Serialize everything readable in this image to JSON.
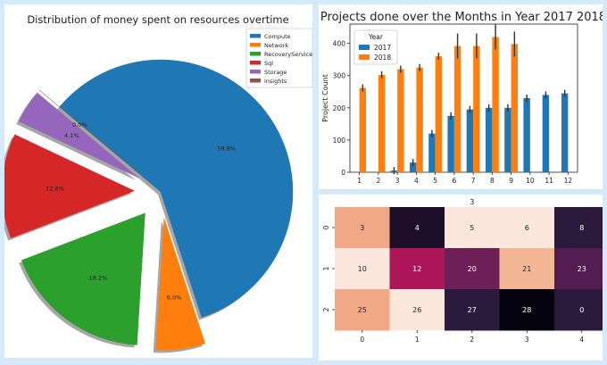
{
  "charts": [
    {
      "type": "pie",
      "title": "Distribution of money spent on resources overtime",
      "labels": [
        "Compute",
        "Network",
        "RecoveryService",
        "Sql",
        "Storage",
        "insights"
      ],
      "values": [
        58.8,
        6.0,
        18.2,
        12.8,
        4.1,
        0.0
      ],
      "pct_labels": [
        "58.8%",
        "6.0%",
        "18.2%",
        "12.8%",
        "4.1%",
        "0.0%"
      ],
      "colors": [
        "#1f77b4",
        "#ff7f0e",
        "#2ca02c",
        "#d62728",
        "#9467bd",
        "#8c564b"
      ],
      "explode": [
        0,
        0.2,
        0.2,
        0.2,
        0.2,
        0.2
      ],
      "legend_position": "top-right"
    },
    {
      "type": "bar",
      "title": "Projects done over the Months in Year 2017 2018",
      "ylabel": "Project Count",
      "xlabel": "",
      "categories": [
        "1",
        "2",
        "3",
        "4",
        "5",
        "6",
        "7",
        "8",
        "9",
        "10",
        "11",
        "12"
      ],
      "yticks": [
        "0",
        "100",
        "200",
        "300",
        "400"
      ],
      "ylim": [
        0,
        460
      ],
      "legend_title": "Year",
      "legend_position": "top-left",
      "series": [
        {
          "name": "2017",
          "color": "#1f77b4",
          "values": [
            0,
            0,
            5,
            30,
            120,
            175,
            195,
            200,
            200,
            230,
            240,
            245
          ]
        },
        {
          "name": "2018",
          "color": "#ff7f0e",
          "values": [
            262,
            302,
            320,
            325,
            360,
            392,
            392,
            420,
            398,
            0,
            0,
            0
          ]
        }
      ]
    },
    {
      "type": "heatmap",
      "title": "3",
      "x_ticks": [
        "0",
        "1",
        "2",
        "3",
        "4"
      ],
      "y_ticks": [
        "0",
        "1",
        "2"
      ],
      "values": [
        [
          3,
          4,
          5,
          6,
          8
        ],
        [
          10,
          12,
          20,
          21,
          23
        ],
        [
          25,
          26,
          27,
          28,
          0
        ]
      ],
      "cell_colors": [
        [
          "#f0a887",
          "#1e0e28",
          "#fbe7de",
          "#fbe7de",
          "#2c1a3c"
        ],
        [
          "#fbe7de",
          "#ad1759",
          "#6e1f58",
          "#f3b795",
          "#521e51"
        ],
        [
          "#f0a887",
          "#fbe7de",
          "#2c1a3c",
          "#050310",
          "#2c1a3c"
        ]
      ],
      "text_colors": [
        [
          "#262626",
          "#ffffff",
          "#262626",
          "#262626",
          "#ffffff"
        ],
        [
          "#262626",
          "#ffffff",
          "#ffffff",
          "#262626",
          "#ffffff"
        ],
        [
          "#262626",
          "#262626",
          "#ffffff",
          "#ffffff",
          "#ffffff"
        ]
      ]
    }
  ]
}
